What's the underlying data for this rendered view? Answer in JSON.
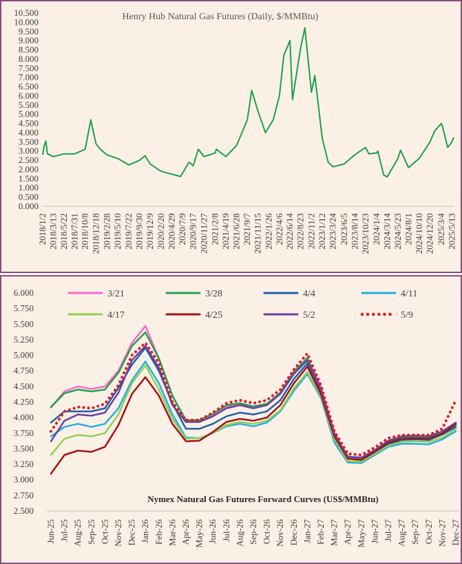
{
  "chart_data": [
    {
      "type": "line",
      "title": "Henry Hub Natural Gas Futures (Daily, $/MMBtu)",
      "ylim": [
        0,
        10.5
      ],
      "yticks": [
        "0.000",
        "0.500",
        "1.000",
        "1.500",
        "2.000",
        "2.500",
        "3.000",
        "3.500",
        "4.000",
        "4.500",
        "5.000",
        "5.500",
        "6.000",
        "6.500",
        "7.000",
        "7.500",
        "8.000",
        "8.500",
        "9.000",
        "9.500",
        "10.000",
        "10.500"
      ],
      "xticks": [
        "2018/1/2",
        "2018/3/13",
        "2018/5/22",
        "2018/7/31",
        "2018/10/8",
        "2018/12/18",
        "2019/2/28",
        "2019/5/10",
        "2019/7/22",
        "2019/9/30",
        "2019/12/9",
        "2020/2/20",
        "2020/4/29",
        "2020/7/9",
        "2020/9/17",
        "2020/11/27",
        "2021/2/8",
        "2021/4/19",
        "2021/6/28",
        "2021/9/7",
        "2021/11/15",
        "2022/1/26",
        "2022/4/6",
        "2022/6/14",
        "2022/8/23",
        "2022/11/2",
        "2023/1/12",
        "2023/3/24",
        "2023/6/5",
        "2023/8/14",
        "2023/10/23",
        "2024/1/4",
        "2024/3/14",
        "2024/5/23",
        "2024/8/1",
        "2024/10/10",
        "2024/12/20",
        "2025/3/4",
        "2025/5/13"
      ],
      "line_color": "#1aa14a",
      "grid": false,
      "series": [
        {
          "x": [
            "2018/1/2",
            "2018/1/12",
            "2018/1/23",
            "2018/2/2",
            "2018/3/13",
            "2018/5/22",
            "2018/7/31",
            "2018/10/8",
            "2018/11/14",
            "2018/11/20",
            "2018/12/5",
            "2018/12/18",
            "2019/1/15",
            "2019/2/28",
            "2019/5/10",
            "2019/7/22",
            "2019/9/30",
            "2019/11/5",
            "2019/12/9",
            "2020/2/20",
            "2020/4/29",
            "2020/6/25",
            "2020/7/9",
            "2020/8/20",
            "2020/9/17",
            "2020/10/20",
            "2020/11/27",
            "2021/2/8",
            "2021/2/16",
            "2021/4/19",
            "2021/6/28",
            "2021/9/7",
            "2021/10/6",
            "2021/11/15",
            "2022/1/4",
            "2022/1/26",
            "2022/2/24",
            "2022/4/6",
            "2022/5/5",
            "2022/6/14",
            "2022/7/1",
            "2022/8/23",
            "2022/9/20",
            "2022/11/2",
            "2022/11/25",
            "2023/1/12",
            "2023/2/20",
            "2023/3/24",
            "2023/6/5",
            "2023/8/14",
            "2023/10/23",
            "2023/11/15",
            "2024/1/4",
            "2024/1/12",
            "2024/2/20",
            "2024/3/14",
            "2024/5/23",
            "2024/6/10",
            "2024/8/1",
            "2024/10/10",
            "2024/12/20",
            "2025/1/20",
            "2025/3/4",
            "2025/3/10",
            "2025/4/15",
            "2025/5/13",
            "2025/5/25"
          ],
          "y": [
            2.8,
            3.3,
            3.55,
            2.85,
            2.7,
            2.85,
            2.85,
            3.1,
            4.7,
            4.45,
            3.9,
            3.4,
            3.1,
            2.8,
            2.6,
            2.25,
            2.5,
            2.75,
            2.3,
            1.9,
            1.75,
            1.62,
            1.8,
            2.4,
            2.2,
            3.1,
            2.7,
            2.9,
            3.1,
            2.7,
            3.3,
            4.7,
            6.3,
            5.2,
            4.0,
            4.3,
            4.7,
            6.0,
            8.2,
            9.0,
            5.8,
            8.6,
            9.7,
            6.2,
            7.1,
            3.7,
            2.4,
            2.15,
            2.3,
            2.8,
            3.2,
            2.85,
            2.9,
            3.0,
            1.7,
            1.6,
            2.6,
            3.05,
            2.1,
            2.6,
            3.5,
            4.1,
            4.5,
            4.4,
            3.2,
            3.5,
            3.75
          ]
        }
      ]
    },
    {
      "type": "line",
      "title": "Nymex  Natural  Gas Futures Forward  Curves (US$/MMBtu)",
      "ylim": [
        2.5,
        6.0
      ],
      "yticks": [
        "2.500",
        "2.750",
        "3.000",
        "3.250",
        "3.500",
        "3.750",
        "4.000",
        "4.250",
        "4.500",
        "4.750",
        "5.000",
        "5.250",
        "5.500",
        "5.750",
        "6.000"
      ],
      "categories": [
        "Jun-25",
        "Jul-25",
        "Aug-25",
        "Sep-25",
        "Oct-25",
        "Nov-25",
        "Dec-25",
        "Jan-26",
        "Feb-26",
        "Mar-26",
        "Apr-26",
        "May-26",
        "Jun-26",
        "Jul-26",
        "Aug-26",
        "Sep-26",
        "Oct-26",
        "Nov-26",
        "Dec-26",
        "Jan-27",
        "Feb-27",
        "Mar-27",
        "Apr-27",
        "May-27",
        "Jun-27",
        "Jul-27",
        "Aug-27",
        "Sep-27",
        "Oct-27",
        "Nov-27",
        "Dec-27"
      ],
      "grid": false,
      "legend_position": "top",
      "series": [
        {
          "name": "3/21",
          "color": "#ff66cc",
          "dotted": false,
          "values": [
            4.16,
            4.42,
            4.5,
            4.46,
            4.5,
            4.75,
            5.2,
            5.47,
            4.95,
            4.35,
            3.95,
            3.95,
            4.05,
            4.18,
            4.22,
            4.18,
            4.22,
            4.4,
            4.75,
            4.95,
            4.5,
            3.73,
            3.36,
            3.33,
            3.43,
            3.58,
            3.66,
            3.67,
            3.66,
            3.73,
            3.85
          ]
        },
        {
          "name": "3/28",
          "color": "#1fa24a",
          "dotted": false,
          "values": [
            4.17,
            4.39,
            4.45,
            4.42,
            4.45,
            4.72,
            5.15,
            5.37,
            4.95,
            4.35,
            3.96,
            3.96,
            4.06,
            4.2,
            4.23,
            4.18,
            4.22,
            4.4,
            4.73,
            4.96,
            4.45,
            3.72,
            3.38,
            3.34,
            3.45,
            3.62,
            3.68,
            3.7,
            3.68,
            3.75,
            3.88
          ]
        },
        {
          "name": "4/4",
          "color": "#1f5fa6",
          "dotted": false,
          "values": [
            3.92,
            4.1,
            4.1,
            4.1,
            4.15,
            4.48,
            4.85,
            5.12,
            4.75,
            4.23,
            3.82,
            3.82,
            3.9,
            4.02,
            4.08,
            4.05,
            4.1,
            4.28,
            4.62,
            4.87,
            4.4,
            3.65,
            3.3,
            3.29,
            3.42,
            3.57,
            3.64,
            3.65,
            3.64,
            3.73,
            3.85
          ]
        },
        {
          "name": "4/11",
          "color": "#22aee6",
          "dotted": false,
          "values": [
            3.7,
            3.85,
            3.9,
            3.85,
            3.9,
            4.15,
            4.6,
            4.9,
            4.55,
            4.05,
            3.68,
            3.67,
            3.75,
            3.86,
            3.9,
            3.86,
            3.92,
            4.1,
            4.43,
            4.7,
            4.32,
            3.6,
            3.28,
            3.27,
            3.4,
            3.53,
            3.58,
            3.58,
            3.57,
            3.65,
            3.78
          ]
        },
        {
          "name": "4/17",
          "color": "#8fd14f",
          "dotted": false,
          "values": [
            3.4,
            3.66,
            3.72,
            3.7,
            3.75,
            4.05,
            4.55,
            4.84,
            4.45,
            3.98,
            3.66,
            3.67,
            3.75,
            3.88,
            3.93,
            3.9,
            3.95,
            4.12,
            4.47,
            4.73,
            4.35,
            3.65,
            3.3,
            3.29,
            3.42,
            3.55,
            3.61,
            3.62,
            3.61,
            3.68,
            3.82
          ]
        },
        {
          "name": "4/25",
          "color": "#a50f15",
          "dotted": false,
          "values": [
            3.1,
            3.4,
            3.47,
            3.45,
            3.53,
            3.88,
            4.38,
            4.65,
            4.35,
            3.9,
            3.62,
            3.63,
            3.77,
            3.93,
            3.98,
            3.95,
            4.0,
            4.2,
            4.55,
            4.82,
            4.38,
            3.7,
            3.34,
            3.32,
            3.45,
            3.6,
            3.66,
            3.67,
            3.66,
            3.74,
            3.9
          ]
        },
        {
          "name": "5/2",
          "color": "#6a3fa0",
          "dotted": false,
          "values": [
            3.62,
            3.95,
            4.05,
            4.03,
            4.08,
            4.4,
            4.92,
            5.15,
            4.8,
            4.2,
            3.93,
            3.93,
            4.02,
            4.15,
            4.2,
            4.15,
            4.2,
            4.38,
            4.7,
            4.92,
            4.45,
            3.75,
            3.37,
            3.36,
            3.48,
            3.63,
            3.7,
            3.71,
            3.7,
            3.78,
            3.92
          ]
        },
        {
          "name": "5/9",
          "color": "#e31a1c",
          "dotted": true,
          "values": [
            3.78,
            4.1,
            4.17,
            4.15,
            4.22,
            4.52,
            5.0,
            5.2,
            4.88,
            4.25,
            3.96,
            3.96,
            4.08,
            4.23,
            4.28,
            4.23,
            4.28,
            4.45,
            4.77,
            5.03,
            4.52,
            3.78,
            3.42,
            3.4,
            3.52,
            3.67,
            3.72,
            3.72,
            3.72,
            3.82,
            4.28
          ]
        }
      ]
    }
  ]
}
